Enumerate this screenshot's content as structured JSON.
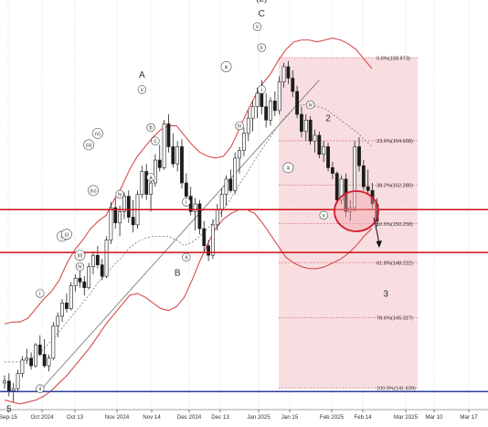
{
  "chart_data": {
    "type": "candlestick",
    "instrument_note": "",
    "x_axis": {
      "tick_labels": [
        "Sep-15",
        "Oct 2024",
        "Oct 13",
        "Nov 2024",
        "Nov 14",
        "Dec 2024",
        "Dec 13",
        "Jan 2025",
        "Jan 15",
        "Feb 2025",
        "Feb 14",
        "Mar 2025",
        "Mar 10",
        "Mar 17"
      ]
    },
    "y_axis": {
      "range": [
        140.5,
        162.0
      ],
      "scale": "linear",
      "tick_labels": []
    },
    "grid": "dotted-vertical",
    "candles": [
      [
        141.9,
        142.3,
        141.6,
        142.0
      ],
      [
        142.0,
        142.4,
        141.2,
        141.5
      ],
      [
        141.5,
        141.9,
        140.9,
        141.6
      ],
      [
        141.6,
        142.6,
        141.4,
        142.4
      ],
      [
        142.4,
        143.3,
        142.2,
        143.1
      ],
      [
        143.1,
        143.7,
        142.9,
        143.2
      ],
      [
        143.2,
        143.5,
        142.6,
        142.8
      ],
      [
        142.8,
        144.0,
        142.7,
        143.9
      ],
      [
        143.9,
        144.4,
        143.3,
        143.4
      ],
      [
        143.4,
        144.2,
        142.7,
        142.8
      ],
      [
        142.8,
        143.4,
        142.5,
        143.2
      ],
      [
        143.2,
        145.1,
        143.1,
        144.9
      ],
      [
        144.9,
        145.6,
        144.3,
        145.4
      ],
      [
        145.4,
        146.3,
        145.1,
        146.1
      ],
      [
        146.1,
        146.6,
        145.6,
        145.8
      ],
      [
        145.8,
        147.2,
        145.7,
        147.0
      ],
      [
        147.0,
        147.6,
        146.7,
        147.4
      ],
      [
        147.4,
        148.1,
        146.9,
        147.2
      ],
      [
        147.2,
        147.5,
        146.5,
        146.9
      ],
      [
        146.9,
        148.2,
        146.8,
        148.0
      ],
      [
        148.0,
        148.8,
        147.6,
        148.6
      ],
      [
        148.6,
        149.1,
        147.9,
        148.1
      ],
      [
        148.1,
        148.4,
        147.3,
        147.5
      ],
      [
        147.5,
        149.6,
        147.4,
        149.4
      ],
      [
        149.4,
        151.4,
        149.2,
        151.1
      ],
      [
        151.1,
        151.6,
        150.0,
        150.3
      ],
      [
        150.3,
        151.2,
        149.6,
        150.9
      ],
      [
        150.9,
        151.9,
        150.5,
        151.7
      ],
      [
        151.7,
        152.0,
        150.3,
        150.6
      ],
      [
        150.6,
        151.5,
        149.8,
        150.2
      ],
      [
        150.2,
        152.0,
        150.0,
        151.8
      ],
      [
        151.8,
        153.3,
        151.6,
        153.0
      ],
      [
        153.0,
        153.4,
        151.5,
        151.8
      ],
      [
        151.8,
        152.6,
        150.9,
        152.4
      ],
      [
        152.4,
        153.9,
        152.2,
        153.6
      ],
      [
        153.6,
        154.4,
        153.0,
        153.2
      ],
      [
        153.2,
        155.7,
        153.1,
        155.5
      ],
      [
        155.5,
        156.0,
        154.0,
        154.3
      ],
      [
        154.3,
        155.0,
        153.2,
        153.4
      ],
      [
        153.4,
        154.6,
        153.0,
        154.3
      ],
      [
        154.3,
        154.7,
        152.1,
        152.4
      ],
      [
        152.4,
        152.9,
        151.4,
        151.7
      ],
      [
        151.7,
        152.2,
        150.7,
        150.9
      ],
      [
        150.9,
        151.6,
        149.9,
        151.3
      ],
      [
        151.3,
        151.5,
        149.7,
        150.0
      ],
      [
        150.0,
        150.4,
        148.8,
        149.1
      ],
      [
        149.1,
        149.4,
        148.3,
        148.6
      ],
      [
        148.6,
        150.5,
        148.4,
        150.2
      ],
      [
        150.2,
        151.3,
        149.9,
        151.0
      ],
      [
        151.0,
        152.1,
        150.6,
        151.8
      ],
      [
        151.8,
        152.8,
        151.2,
        152.6
      ],
      [
        152.6,
        153.1,
        151.9,
        152.0
      ],
      [
        152.0,
        154.0,
        151.8,
        153.7
      ],
      [
        153.7,
        154.3,
        152.9,
        154.1
      ],
      [
        154.1,
        155.3,
        153.8,
        155.0
      ],
      [
        155.0,
        156.2,
        154.6,
        155.8
      ],
      [
        155.8,
        156.7,
        155.1,
        156.4
      ],
      [
        156.4,
        157.4,
        155.8,
        157.1
      ],
      [
        157.1,
        157.8,
        156.0,
        156.4
      ],
      [
        156.4,
        157.1,
        155.3,
        155.7
      ],
      [
        155.7,
        156.9,
        155.4,
        156.7
      ],
      [
        156.7,
        157.2,
        155.9,
        156.2
      ],
      [
        156.2,
        158.0,
        156.0,
        157.7
      ],
      [
        157.7,
        158.7,
        157.4,
        158.5
      ],
      [
        158.5,
        158.8,
        157.6,
        157.9
      ],
      [
        157.9,
        158.3,
        156.9,
        157.2
      ],
      [
        157.2,
        157.5,
        155.8,
        156.0
      ],
      [
        156.0,
        156.4,
        154.8,
        155.1
      ],
      [
        155.1,
        156.0,
        154.6,
        155.7
      ],
      [
        155.7,
        155.9,
        154.4,
        154.6
      ],
      [
        154.6,
        155.2,
        154.0,
        154.9
      ],
      [
        154.9,
        155.1,
        153.7,
        153.9
      ],
      [
        153.9,
        154.6,
        153.5,
        154.3
      ],
      [
        154.3,
        154.5,
        153.0,
        153.2
      ],
      [
        153.2,
        153.5,
        152.6,
        152.9
      ],
      [
        152.9,
        153.0,
        151.3,
        151.5
      ],
      [
        151.5,
        152.8,
        151.3,
        152.6
      ],
      [
        152.6,
        152.9,
        150.6,
        150.9
      ],
      [
        150.9,
        151.5,
        150.4,
        151.1
      ],
      [
        151.1,
        154.6,
        150.9,
        154.3
      ],
      [
        154.3,
        154.8,
        153.0,
        153.3
      ],
      [
        153.3,
        153.6,
        152.0,
        152.2
      ],
      [
        152.2,
        153.1,
        151.8,
        152.0
      ],
      [
        152.0,
        152.4,
        151.0,
        151.3
      ],
      [
        151.3,
        151.6,
        150.1,
        150.4
      ]
    ],
    "bands": {
      "upper": [
        145.0,
        145.1,
        145.1,
        145.3,
        145.8,
        146.3,
        146.7,
        147.3,
        148.2,
        148.9,
        149.4,
        150.0,
        150.4,
        150.7,
        151.5,
        152.2,
        153.1,
        153.8,
        154.3,
        154.8,
        155.2,
        155.4,
        155.4,
        154.9,
        154.4,
        154.0,
        153.8,
        153.7,
        153.8,
        154.3,
        155.2,
        156.1,
        156.9,
        157.6,
        158.1,
        158.8,
        159.4,
        159.8,
        159.9,
        159.9,
        159.8,
        159.9,
        160.0,
        159.9,
        159.7,
        159.4,
        158.9,
        158.4
      ],
      "middle": [
        143.0,
        143.0,
        143.0,
        143.1,
        143.3,
        143.7,
        144.1,
        144.6,
        145.1,
        145.6,
        146.1,
        146.6,
        147.2,
        147.6,
        148.1,
        148.5,
        149.0,
        149.3,
        149.5,
        149.6,
        149.6,
        149.6,
        149.4,
        149.1,
        149.3,
        149.6,
        150.0,
        150.5,
        151.0,
        151.6,
        152.3,
        152.9,
        153.6,
        154.2,
        154.8,
        155.4,
        155.9,
        156.3,
        156.5,
        156.5,
        156.4,
        156.3,
        156.0,
        155.7,
        155.4,
        155.1,
        154.7,
        154.3
      ],
      "lower": [
        141.0,
        140.9,
        140.8,
        140.9,
        141.0,
        141.2,
        141.5,
        141.9,
        142.3,
        142.8,
        143.3,
        143.8,
        144.4,
        145.0,
        145.5,
        146.0,
        146.5,
        146.6,
        146.4,
        146.1,
        145.8,
        145.7,
        145.9,
        146.4,
        147.3,
        148.3,
        149.2,
        150.0,
        150.5,
        150.8,
        151.0,
        151.0,
        150.8,
        150.3,
        149.7,
        149.1,
        148.5,
        148.2,
        148.0,
        147.9,
        147.9,
        148.0,
        148.2,
        148.4,
        148.7,
        149.1,
        149.6,
        150.0
      ]
    },
    "trendline": {
      "from": [
        8,
        141.5
      ],
      "to": [
        71,
        157.8
      ]
    },
    "fibonacci_levels": [
      {
        "label": "0.0%(158.973)",
        "value": 158.973
      },
      {
        "label": "23.6%(154.608)",
        "value": 154.608
      },
      {
        "label": "38.2%(152.280)",
        "value": 152.28
      },
      {
        "label": "50.0%(150.258)",
        "value": 150.258
      },
      {
        "label": "61.8%(148.222)",
        "value": 148.222
      },
      {
        "label": "78.6%(145.327)",
        "value": 145.327
      },
      {
        "label": "100.0%(141.639)",
        "value": 141.639
      }
    ],
    "horizontal_lines": [
      {
        "value": 151.0,
        "color": "#cc1010"
      },
      {
        "value": 148.75,
        "color": "#cc1010"
      },
      {
        "value": 141.45,
        "color": "#2a3f9a"
      }
    ],
    "wave_labels": [
      {
        "text": "5",
        "bar": 1,
        "price": 140.55,
        "style": "plain"
      },
      {
        "text": "i",
        "bar": 8,
        "price": 146.6,
        "style": "circled"
      },
      {
        "text": "ii",
        "bar": 8,
        "price": 141.6,
        "style": "circled"
      },
      {
        "text": "iii",
        "bar": 13,
        "price": 149.6,
        "style": "circled"
      },
      {
        "text": "iv",
        "bar": 17,
        "price": 148.0,
        "style": "circled"
      },
      {
        "text": "(i)",
        "bar": 14,
        "price": 149.7,
        "style": "circled"
      },
      {
        "text": "(ii)",
        "bar": 17,
        "price": 148.6,
        "style": "circled"
      },
      {
        "text": "(iii)",
        "bar": 19,
        "price": 154.4,
        "style": "circled"
      },
      {
        "text": "(iv)",
        "bar": 20,
        "price": 152.0,
        "style": "circled"
      },
      {
        "text": "(v)",
        "bar": 21,
        "price": 155.0,
        "style": "circled"
      },
      {
        "text": "A",
        "bar": 31,
        "price": 158.1,
        "style": "plain"
      },
      {
        "text": "v",
        "bar": 31,
        "price": 157.3,
        "style": "circled"
      },
      {
        "text": "b",
        "bar": 33,
        "price": 155.3,
        "style": "circled"
      },
      {
        "text": "a",
        "bar": 33,
        "price": 152.7,
        "style": "circled"
      },
      {
        "text": "c",
        "bar": 34,
        "price": 154.6,
        "style": "circled"
      },
      {
        "text": "iv",
        "bar": 26,
        "price": 151.8,
        "style": "circled"
      },
      {
        "text": "i",
        "bar": 41,
        "price": 151.4,
        "style": "circled"
      },
      {
        "text": "ii",
        "bar": 41,
        "price": 148.5,
        "style": "circled"
      },
      {
        "text": "B",
        "bar": 39,
        "price": 147.7,
        "style": "plain"
      },
      {
        "text": "iii",
        "bar": 50,
        "price": 158.5,
        "style": "circled"
      },
      {
        "text": "iv",
        "bar": 53,
        "price": 155.4,
        "style": "circled"
      },
      {
        "text": "v",
        "bar": 57,
        "price": 160.6,
        "style": "circled"
      },
      {
        "text": "(2)",
        "bar": 58,
        "price": 162.1,
        "style": "plain"
      },
      {
        "text": "C",
        "bar": 58,
        "price": 161.3,
        "style": "plain"
      },
      {
        "text": "ii",
        "bar": 58,
        "price": 159.5,
        "style": "circled"
      },
      {
        "text": "i",
        "bar": 58,
        "price": 157.3,
        "style": "circled"
      },
      {
        "text": "iii",
        "bar": 64,
        "price": 153.2,
        "style": "circled"
      },
      {
        "text": "iv",
        "bar": 69,
        "price": 156.5,
        "style": "circled"
      },
      {
        "text": "v",
        "bar": 72,
        "price": 150.7,
        "style": "circled"
      },
      {
        "text": "2",
        "bar": 73,
        "price": 155.8,
        "style": "plain"
      },
      {
        "text": "3",
        "bar": 86,
        "price": 146.6,
        "style": "plain"
      }
    ]
  }
}
